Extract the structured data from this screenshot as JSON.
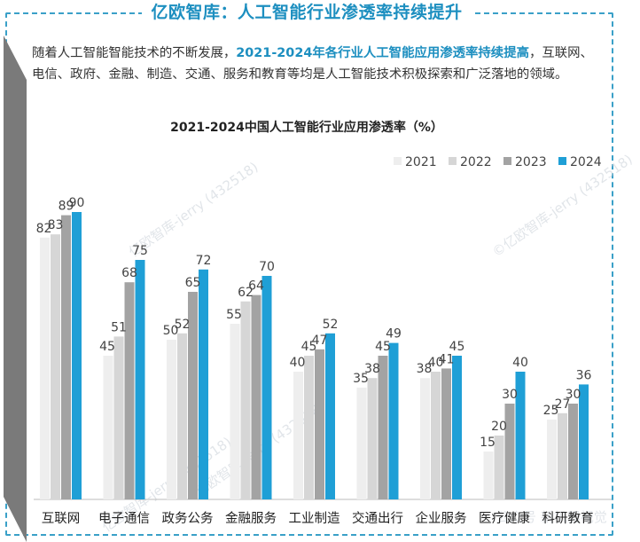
{
  "header": {
    "title": "亿欧智库：人工智能行业渗透率持续提升"
  },
  "intro": {
    "part1": "随着人工智能智能技术的不断发展，",
    "highlight": "2021-2024年各行业人工智能应用渗透率持续提高",
    "part2": "，互联网、电信、政府、金融、制造、交通、服务和教育等均是人工智能技术积极探索和广泛落地的领域。"
  },
  "watermarks": [
    "亿欧智库-jerry (432518)",
    "©亿欧智库-jerry (432518)",
    "亿欧智库-jerry (432518)",
    "亿欧智库-jerry (432518)",
    "公众号 新机器视觉"
  ],
  "colors": {
    "accent": "#1d8fc0",
    "s2021": "#eeeeee",
    "s2022": "#d6d6d6",
    "s2023": "#a3a3a3",
    "s2024": "#1f9fd6"
  },
  "chart_data": {
    "type": "bar",
    "title": "2021-2024中国人工智能行业应用渗透率（%）",
    "xlabel": "",
    "ylabel": "",
    "ylim": [
      0,
      100
    ],
    "grid": false,
    "legend_position": "top-right",
    "categories": [
      "互联网",
      "电子通信",
      "政务公务",
      "金融服务",
      "工业制造",
      "交通出行",
      "企业服务",
      "医疗健康",
      "科研教育"
    ],
    "series": [
      {
        "name": "2021",
        "values": [
          82,
          45,
          50,
          55,
          40,
          35,
          38,
          15,
          25
        ]
      },
      {
        "name": "2022",
        "values": [
          83,
          51,
          52,
          62,
          45,
          38,
          40,
          20,
          27
        ]
      },
      {
        "name": "2023",
        "values": [
          89,
          68,
          65,
          64,
          47,
          45,
          41,
          30,
          30
        ]
      },
      {
        "name": "2024",
        "values": [
          90,
          75,
          72,
          70,
          52,
          49,
          45,
          40,
          36
        ]
      }
    ]
  }
}
